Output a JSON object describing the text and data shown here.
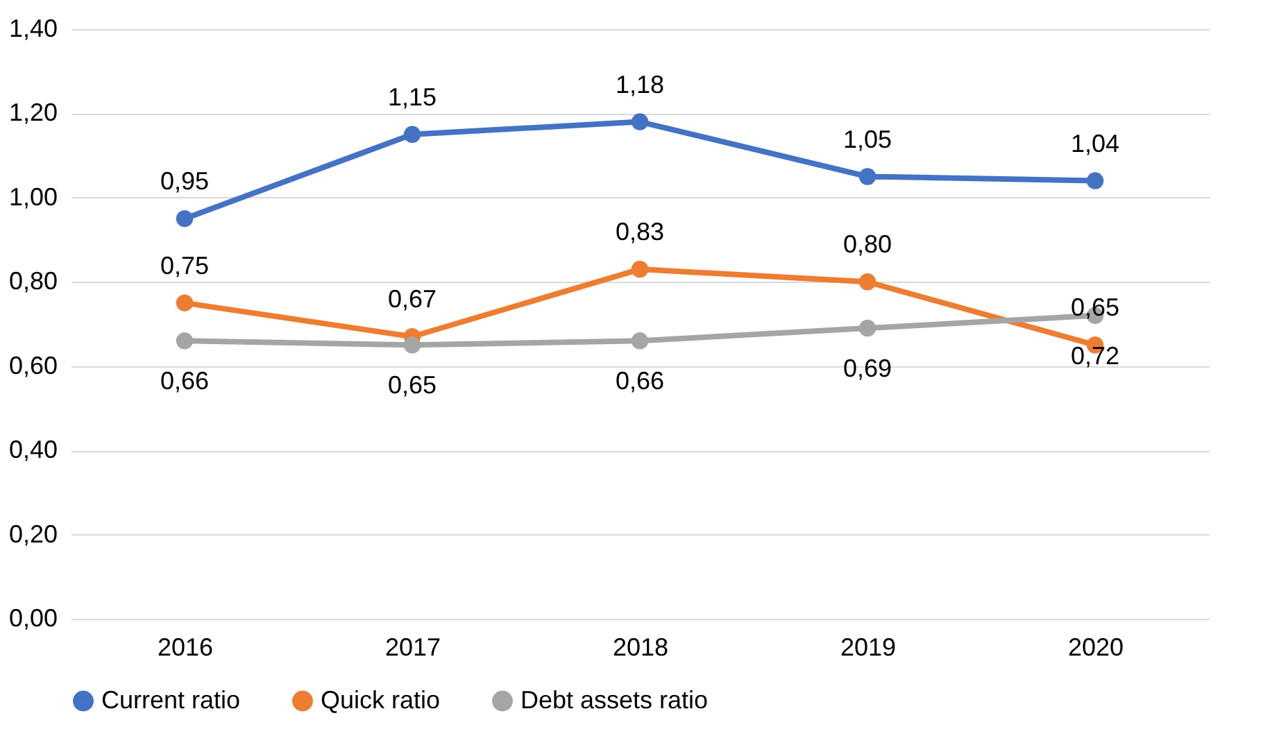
{
  "chart_data": {
    "type": "line",
    "categories": [
      "2016",
      "2017",
      "2018",
      "2019",
      "2020"
    ],
    "series": [
      {
        "name": "Current ratio",
        "color": "#4472c4",
        "values": [
          0.95,
          1.15,
          1.18,
          1.05,
          1.04
        ],
        "value_labels": [
          "0,95",
          "1,15",
          "1,18",
          "1,05",
          "1,04"
        ]
      },
      {
        "name": "Quick ratio",
        "color": "#ed7d31",
        "values": [
          0.75,
          0.67,
          0.83,
          0.8,
          0.65
        ],
        "value_labels": [
          "0,75",
          "0,67",
          "0,83",
          "0,80",
          "0,65"
        ]
      },
      {
        "name": "Debt assets ratio",
        "color": "#a5a5a5",
        "values": [
          0.66,
          0.65,
          0.66,
          0.69,
          0.72
        ],
        "value_labels": [
          "0,66",
          "0,65",
          "0,66",
          "0,69",
          "0,72"
        ]
      }
    ],
    "ylim": [
      0,
      1.4
    ],
    "yticks": [
      {
        "value": 0,
        "label": "0,00"
      },
      {
        "value": 0.2,
        "label": "0,20"
      },
      {
        "value": 0.4,
        "label": "0,40"
      },
      {
        "value": 0.6,
        "label": "0,60"
      },
      {
        "value": 0.8,
        "label": "0,80"
      },
      {
        "value": 1.0,
        "label": "1,00"
      },
      {
        "value": 1.2,
        "label": "1,20"
      },
      {
        "value": 1.4,
        "label": "1,40"
      }
    ],
    "grid": "y",
    "legend": "bottom",
    "marker": "circle",
    "line_style": "solid"
  }
}
